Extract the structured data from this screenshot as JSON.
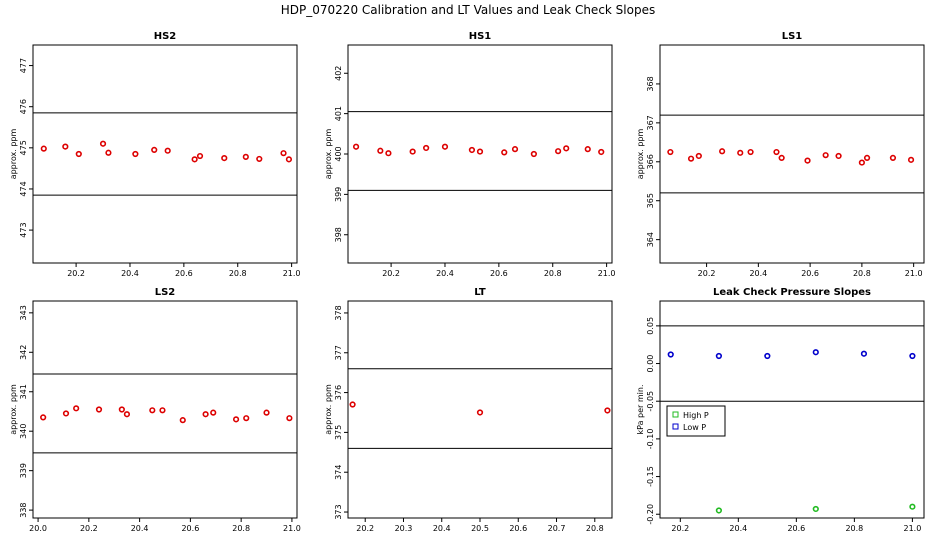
{
  "title": "HDP_070220  Calibration and LT Values and Leak Check Slopes",
  "chart_data": [
    {
      "type": "scatter",
      "title": "HS2",
      "ylabel": "approx. ppm",
      "xlim": [
        20.04,
        21.02
      ],
      "ylim": [
        472.2,
        477.5
      ],
      "xticks": [
        20.2,
        20.4,
        20.6,
        20.8,
        21.0
      ],
      "xtick_labels": [
        "20.2",
        "20.4",
        "20.6",
        "20.8",
        "21.0"
      ],
      "yticks": [
        473,
        474,
        475,
        476,
        477
      ],
      "ytick_labels": [
        "473",
        "474",
        "475",
        "476",
        "477"
      ],
      "hlines": [
        475.85,
        473.85
      ],
      "series": [
        {
          "color": "#dd0000",
          "x": [
            20.08,
            20.16,
            20.21,
            20.3,
            20.32,
            20.42,
            20.49,
            20.54,
            20.64,
            20.66,
            20.75,
            20.83,
            20.88,
            20.97,
            20.99
          ],
          "y": [
            474.98,
            475.03,
            474.85,
            475.1,
            474.88,
            474.85,
            474.95,
            474.93,
            474.72,
            474.8,
            474.75,
            474.78,
            474.73,
            474.87,
            474.72
          ]
        }
      ]
    },
    {
      "type": "scatter",
      "title": "HS1",
      "ylabel": "approx. ppm",
      "xlim": [
        20.04,
        21.02
      ],
      "ylim": [
        397.3,
        402.7
      ],
      "xticks": [
        20.2,
        20.4,
        20.6,
        20.8,
        21.0
      ],
      "xtick_labels": [
        "20.2",
        "20.4",
        "20.6",
        "20.8",
        "21.0"
      ],
      "yticks": [
        398,
        399,
        400,
        401,
        402
      ],
      "ytick_labels": [
        "398",
        "399",
        "400",
        "401",
        "402"
      ],
      "hlines": [
        401.05,
        399.1
      ],
      "series": [
        {
          "color": "#dd0000",
          "x": [
            20.07,
            20.16,
            20.19,
            20.28,
            20.33,
            20.4,
            20.5,
            20.53,
            20.62,
            20.66,
            20.73,
            20.82,
            20.85,
            20.93,
            20.98
          ],
          "y": [
            400.18,
            400.08,
            400.02,
            400.06,
            400.15,
            400.18,
            400.1,
            400.06,
            400.04,
            400.12,
            400.0,
            400.07,
            400.14,
            400.12,
            400.05
          ]
        }
      ]
    },
    {
      "type": "scatter",
      "title": "LS1",
      "ylabel": "approx. ppm",
      "xlim": [
        20.02,
        21.04
      ],
      "ylim": [
        363.4,
        369.0
      ],
      "xticks": [
        20.2,
        20.4,
        20.6,
        20.8,
        21.0
      ],
      "xtick_labels": [
        "20.2",
        "20.4",
        "20.6",
        "20.8",
        "21.0"
      ],
      "yticks": [
        364,
        365,
        366,
        367,
        368
      ],
      "ytick_labels": [
        "364",
        "365",
        "366",
        "367",
        "368"
      ],
      "hlines": [
        367.2,
        365.2
      ],
      "series": [
        {
          "color": "#dd0000",
          "x": [
            20.06,
            20.14,
            20.17,
            20.26,
            20.33,
            20.37,
            20.47,
            20.49,
            20.59,
            20.66,
            20.71,
            20.8,
            20.82,
            20.92,
            20.99
          ],
          "y": [
            366.25,
            366.08,
            366.15,
            366.27,
            366.23,
            366.25,
            366.25,
            366.1,
            366.03,
            366.17,
            366.15,
            365.98,
            366.1,
            366.1,
            366.05
          ]
        }
      ]
    },
    {
      "type": "scatter",
      "title": "LS2",
      "ylabel": "approx. ppm",
      "xlim": [
        19.98,
        21.02
      ],
      "ylim": [
        337.8,
        343.3
      ],
      "xticks": [
        20.0,
        20.2,
        20.4,
        20.6,
        20.8,
        21.0
      ],
      "xtick_labels": [
        "20.0",
        "20.2",
        "20.4",
        "20.6",
        "20.8",
        "21.0"
      ],
      "yticks": [
        338,
        339,
        340,
        341,
        342,
        343
      ],
      "ytick_labels": [
        "338",
        "339",
        "340",
        "341",
        "342",
        "343"
      ],
      "hlines": [
        341.45,
        339.45
      ],
      "series": [
        {
          "color": "#dd0000",
          "x": [
            20.02,
            20.11,
            20.15,
            20.24,
            20.33,
            20.35,
            20.45,
            20.49,
            20.57,
            20.66,
            20.69,
            20.78,
            20.82,
            20.9,
            20.99
          ],
          "y": [
            340.35,
            340.45,
            340.58,
            340.55,
            340.55,
            340.43,
            340.53,
            340.53,
            340.28,
            340.43,
            340.47,
            340.3,
            340.33,
            340.47,
            340.33
          ]
        }
      ]
    },
    {
      "type": "scatter",
      "title": "LT",
      "ylabel": "approx. ppm",
      "xlim": [
        20.155,
        20.845
      ],
      "ylim": [
        372.85,
        378.3
      ],
      "xticks": [
        20.2,
        20.3,
        20.4,
        20.5,
        20.6,
        20.7,
        20.8
      ],
      "xtick_labels": [
        "20.2",
        "20.3",
        "20.4",
        "20.5",
        "20.6",
        "20.7",
        "20.8"
      ],
      "yticks": [
        373,
        374,
        375,
        376,
        377,
        378
      ],
      "ytick_labels": [
        "373",
        "374",
        "375",
        "376",
        "377",
        "378"
      ],
      "hlines": [
        376.6,
        374.6
      ],
      "series": [
        {
          "color": "#dd0000",
          "x": [
            20.167,
            20.5,
            20.833
          ],
          "y": [
            375.7,
            375.5,
            375.55
          ]
        }
      ]
    },
    {
      "type": "scatter",
      "title": "Leak Check Pressure Slopes",
      "ylabel": "kPa per min.",
      "xlim": [
        20.13,
        21.04
      ],
      "ylim": [
        -0.205,
        0.083
      ],
      "xticks": [
        20.2,
        20.4,
        20.6,
        20.8,
        21.0
      ],
      "xtick_labels": [
        "20.2",
        "20.4",
        "20.6",
        "20.8",
        "21.0"
      ],
      "yticks": [
        -0.2,
        -0.15,
        -0.1,
        -0.05,
        0.0,
        0.05
      ],
      "ytick_labels": [
        "-0.20",
        "-0.15",
        "-0.10",
        "-0.05",
        "0.00",
        "0.05"
      ],
      "hlines": [
        0.05,
        -0.05
      ],
      "legend": {
        "placement": "left-middle",
        "entries": [
          "High P",
          "Low P"
        ]
      },
      "series": [
        {
          "name": "High P",
          "color": "#22bb22",
          "x": [
            20.333,
            20.667,
            21.0
          ],
          "y": [
            -0.195,
            -0.193,
            -0.19
          ]
        },
        {
          "name": "Low P",
          "color": "#0000cc",
          "x": [
            20.167,
            20.333,
            20.5,
            20.667,
            20.833,
            21.0
          ],
          "y": [
            0.012,
            0.01,
            0.01,
            0.015,
            0.013,
            0.01
          ]
        }
      ]
    }
  ]
}
